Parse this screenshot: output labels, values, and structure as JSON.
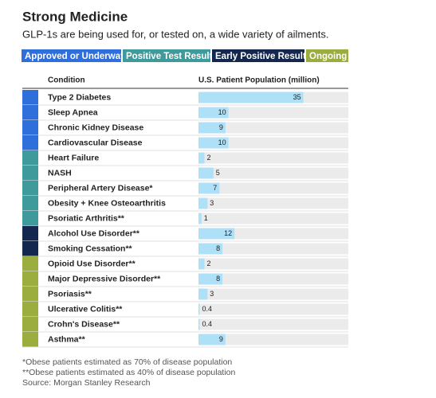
{
  "chart_data": {
    "type": "bar",
    "title": "Strong Medicine",
    "subtitle": "GLP-1s are being used for, or tested on, a wide variety of ailments.",
    "column_headers": [
      "Condition",
      "U.S. Patient Population (million)"
    ],
    "groups": [
      {
        "name": "Approved or Underway",
        "color": "#2f6fdc"
      },
      {
        "name": "Positive Test Results",
        "color": "#3f9a9b"
      },
      {
        "name": "Early Positive Results",
        "color": "#14284f"
      },
      {
        "name": "Ongoing",
        "color": "#9aad3e"
      }
    ],
    "categories": [
      "Type 2 Diabetes",
      "Sleep Apnea",
      "Chronic Kidney Disease",
      "Cardiovascular Disease",
      "Heart Failure",
      "NASH",
      "Peripheral Artery Disease*",
      "Obesity + Knee Osteoarthritis",
      "Psoriatic Arthritis**",
      "Alcohol Use Disorder**",
      "Smoking Cessation**",
      "Opioid Use Disorder**",
      "Major Depressive Disorder**",
      "Psoriasis**",
      "Ulcerative Colitis**",
      "Crohn's Disease**",
      "Asthma**"
    ],
    "row_group": [
      "Approved or Underway",
      "Approved or Underway",
      "Approved or Underway",
      "Approved or Underway",
      "Positive Test Results",
      "Positive Test Results",
      "Positive Test Results",
      "Positive Test Results",
      "Positive Test Results",
      "Early Positive Results",
      "Early Positive Results",
      "Ongoing",
      "Ongoing",
      "Ongoing",
      "Ongoing",
      "Ongoing",
      "Ongoing"
    ],
    "values": [
      35,
      10,
      9,
      10,
      2,
      5,
      7,
      3,
      1,
      12,
      8,
      2,
      8,
      3,
      0.4,
      0.4,
      9
    ],
    "color": "#aee0f7",
    "xlim": [
      0,
      50
    ],
    "footnotes": [
      "*Obese patients estimated as 70% of disease population",
      "**Obese patients estimated as 40% of disease population",
      "Source: Morgan Stanley Research"
    ]
  }
}
